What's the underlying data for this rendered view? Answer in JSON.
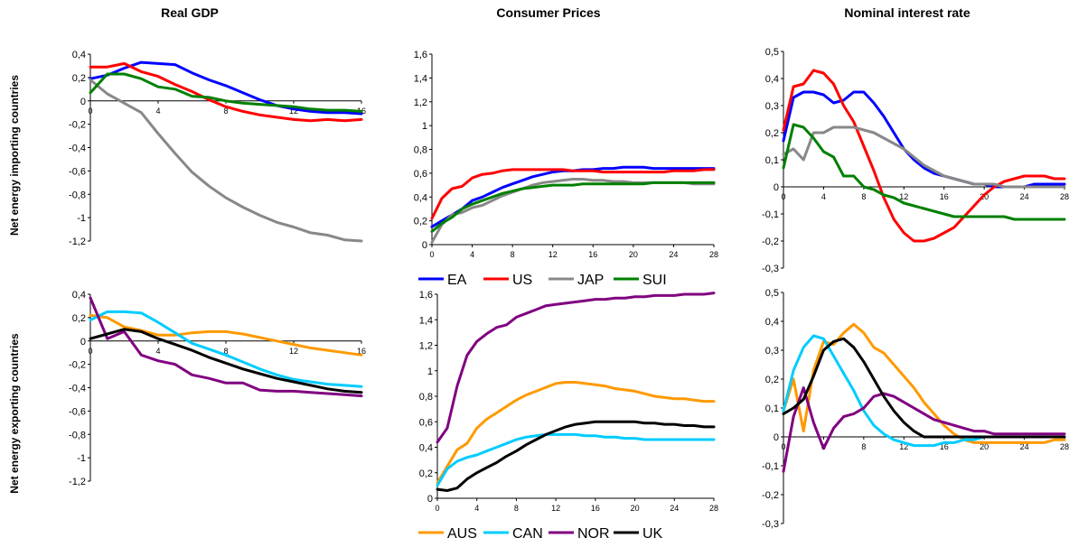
{
  "column_titles": [
    "Real GDP",
    "Consumer Prices",
    "Nominal interest rate"
  ],
  "row_labels": [
    "Net energy importing countries",
    "Net energy exporting countries"
  ],
  "legends": [
    [
      {
        "name": "EA",
        "color": "#0000ff"
      },
      {
        "name": "US",
        "color": "#ff0000"
      },
      {
        "name": "JAP",
        "color": "#888888"
      },
      {
        "name": "SUI",
        "color": "#008000"
      }
    ],
    [
      {
        "name": "AUS",
        "color": "#ff9900"
      },
      {
        "name": "CAN",
        "color": "#00ccff"
      },
      {
        "name": "NOR",
        "color": "#800080"
      },
      {
        "name": "UK",
        "color": "#000000"
      }
    ]
  ],
  "chart_data": [
    {
      "type": "line",
      "row": 0,
      "col": 0,
      "x": [
        0,
        1,
        2,
        3,
        4,
        5,
        6,
        7,
        8,
        9,
        10,
        11,
        12,
        13,
        14,
        15,
        16
      ],
      "xlim": [
        0,
        16
      ],
      "xticks": [
        0,
        4,
        8,
        12,
        16
      ],
      "ylim": [
        -1.2,
        0.4
      ],
      "yticks": [
        -1.2,
        -1,
        -0.8,
        -0.6,
        -0.4,
        -0.2,
        0,
        0.2,
        0.4
      ],
      "series": [
        {
          "name": "EA",
          "color": "#0000ff",
          "values": [
            0.19,
            0.22,
            0.28,
            0.33,
            0.32,
            0.31,
            0.24,
            0.18,
            0.13,
            0.07,
            0.01,
            -0.04,
            -0.07,
            -0.09,
            -0.1,
            -0.1,
            -0.11
          ]
        },
        {
          "name": "US",
          "color": "#ff0000",
          "values": [
            0.29,
            0.29,
            0.32,
            0.25,
            0.21,
            0.14,
            0.08,
            0.01,
            -0.05,
            -0.09,
            -0.12,
            -0.14,
            -0.16,
            -0.17,
            -0.16,
            -0.17,
            -0.16
          ]
        },
        {
          "name": "JAP",
          "color": "#888888",
          "values": [
            0.18,
            0.06,
            -0.02,
            -0.1,
            -0.28,
            -0.45,
            -0.61,
            -0.73,
            -0.83,
            -0.91,
            -0.98,
            -1.04,
            -1.08,
            -1.13,
            -1.15,
            -1.19,
            -1.2
          ]
        },
        {
          "name": "SUI",
          "color": "#008000",
          "values": [
            0.07,
            0.23,
            0.23,
            0.19,
            0.12,
            0.1,
            0.04,
            0.03,
            0.0,
            -0.02,
            -0.03,
            -0.04,
            -0.05,
            -0.07,
            -0.08,
            -0.08,
            -0.09
          ]
        }
      ]
    },
    {
      "type": "line",
      "row": 0,
      "col": 1,
      "x": [
        0,
        1,
        2,
        3,
        4,
        5,
        6,
        7,
        8,
        9,
        10,
        11,
        12,
        13,
        14,
        15,
        16,
        17,
        18,
        19,
        20,
        21,
        22,
        23,
        24,
        25,
        26,
        27,
        28
      ],
      "xlim": [
        0,
        28
      ],
      "xticks": [
        0,
        4,
        8,
        12,
        16,
        20,
        24,
        28
      ],
      "ylim": [
        0,
        1.6
      ],
      "yticks": [
        0,
        0.2,
        0.4,
        0.6,
        0.8,
        1,
        1.2,
        1.4,
        1.6
      ],
      "series": [
        {
          "name": "EA",
          "color": "#0000ff",
          "values": [
            0.15,
            0.2,
            0.25,
            0.3,
            0.37,
            0.4,
            0.44,
            0.48,
            0.51,
            0.54,
            0.57,
            0.59,
            0.61,
            0.62,
            0.62,
            0.63,
            0.63,
            0.64,
            0.64,
            0.65,
            0.65,
            0.65,
            0.64,
            0.64,
            0.64,
            0.64,
            0.64,
            0.64,
            0.64
          ]
        },
        {
          "name": "US",
          "color": "#ff0000",
          "values": [
            0.22,
            0.39,
            0.47,
            0.49,
            0.56,
            0.59,
            0.6,
            0.62,
            0.63,
            0.63,
            0.63,
            0.63,
            0.63,
            0.63,
            0.62,
            0.62,
            0.62,
            0.61,
            0.61,
            0.61,
            0.61,
            0.61,
            0.61,
            0.61,
            0.62,
            0.62,
            0.62,
            0.63,
            0.63
          ]
        },
        {
          "name": "JAP",
          "color": "#888888",
          "values": [
            0.02,
            0.17,
            0.25,
            0.27,
            0.31,
            0.33,
            0.37,
            0.41,
            0.44,
            0.47,
            0.5,
            0.52,
            0.53,
            0.54,
            0.55,
            0.55,
            0.54,
            0.54,
            0.53,
            0.53,
            0.52,
            0.52,
            0.52,
            0.52,
            0.52,
            0.52,
            0.51,
            0.51,
            0.51
          ]
        },
        {
          "name": "SUI",
          "color": "#008000",
          "values": [
            0.11,
            0.18,
            0.23,
            0.3,
            0.34,
            0.37,
            0.4,
            0.43,
            0.45,
            0.47,
            0.48,
            0.49,
            0.5,
            0.5,
            0.5,
            0.51,
            0.51,
            0.51,
            0.51,
            0.51,
            0.51,
            0.51,
            0.52,
            0.52,
            0.52,
            0.52,
            0.52,
            0.52,
            0.52
          ]
        }
      ]
    },
    {
      "type": "line",
      "row": 0,
      "col": 2,
      "x": [
        0,
        1,
        2,
        3,
        4,
        5,
        6,
        7,
        8,
        9,
        10,
        11,
        12,
        13,
        14,
        15,
        16,
        17,
        18,
        19,
        20,
        21,
        22,
        23,
        24,
        25,
        26,
        27,
        28
      ],
      "xlim": [
        0,
        28
      ],
      "xticks": [
        0,
        4,
        8,
        12,
        16,
        20,
        24,
        28
      ],
      "ylim": [
        -0.3,
        0.5
      ],
      "yticks": [
        -0.3,
        -0.2,
        -0.1,
        0,
        0.1,
        0.2,
        0.3,
        0.4,
        0.5
      ],
      "series": [
        {
          "name": "EA",
          "color": "#0000ff",
          "values": [
            0.17,
            0.33,
            0.35,
            0.35,
            0.34,
            0.31,
            0.32,
            0.35,
            0.35,
            0.31,
            0.26,
            0.2,
            0.14,
            0.1,
            0.07,
            0.05,
            0.04,
            0.03,
            0.02,
            0.01,
            0.01,
            0.0,
            0.0,
            0.0,
            0.0,
            0.01,
            0.01,
            0.01,
            0.01
          ]
        },
        {
          "name": "US",
          "color": "#ff0000",
          "values": [
            0.21,
            0.37,
            0.38,
            0.43,
            0.42,
            0.38,
            0.3,
            0.24,
            0.15,
            0.06,
            -0.04,
            -0.12,
            -0.17,
            -0.2,
            -0.2,
            -0.19,
            -0.17,
            -0.15,
            -0.11,
            -0.07,
            -0.03,
            0.0,
            0.02,
            0.03,
            0.04,
            0.04,
            0.04,
            0.03,
            0.03
          ]
        },
        {
          "name": "JAP",
          "color": "#888888",
          "values": [
            0.12,
            0.14,
            0.1,
            0.2,
            0.2,
            0.22,
            0.22,
            0.22,
            0.21,
            0.2,
            0.18,
            0.16,
            0.14,
            0.11,
            0.08,
            0.06,
            0.04,
            0.03,
            0.02,
            0.01,
            0.01,
            0.01,
            0.0,
            0.0,
            0.0,
            0.0,
            0.0,
            0.0,
            0.0
          ]
        },
        {
          "name": "SUI",
          "color": "#008000",
          "values": [
            0.07,
            0.23,
            0.22,
            0.18,
            0.13,
            0.11,
            0.04,
            0.04,
            0.0,
            -0.01,
            -0.03,
            -0.04,
            -0.06,
            -0.07,
            -0.08,
            -0.09,
            -0.1,
            -0.11,
            -0.11,
            -0.11,
            -0.11,
            -0.11,
            -0.11,
            -0.12,
            -0.12,
            -0.12,
            -0.12,
            -0.12,
            -0.12
          ]
        }
      ]
    },
    {
      "type": "line",
      "row": 1,
      "col": 0,
      "x": [
        0,
        1,
        2,
        3,
        4,
        5,
        6,
        7,
        8,
        9,
        10,
        11,
        12,
        13,
        14,
        15,
        16
      ],
      "xlim": [
        0,
        16
      ],
      "xticks": [
        0,
        4,
        8,
        12,
        16
      ],
      "ylim": [
        -1.2,
        0.4
      ],
      "yticks": [
        -1.2,
        -1,
        -0.8,
        -0.6,
        -0.4,
        -0.2,
        0,
        0.2,
        0.4
      ],
      "series": [
        {
          "name": "AUS",
          "color": "#ff9900",
          "values": [
            0.22,
            0.2,
            0.12,
            0.09,
            0.05,
            0.05,
            0.07,
            0.08,
            0.08,
            0.06,
            0.03,
            0.0,
            -0.03,
            -0.06,
            -0.08,
            -0.1,
            -0.12
          ]
        },
        {
          "name": "CAN",
          "color": "#00ccff",
          "values": [
            0.18,
            0.25,
            0.25,
            0.24,
            0.16,
            0.07,
            -0.02,
            -0.07,
            -0.12,
            -0.18,
            -0.24,
            -0.29,
            -0.33,
            -0.35,
            -0.37,
            -0.38,
            -0.39
          ]
        },
        {
          "name": "NOR",
          "color": "#800080",
          "values": [
            0.37,
            0.02,
            0.08,
            -0.12,
            -0.17,
            -0.2,
            -0.29,
            -0.32,
            -0.36,
            -0.36,
            -0.42,
            -0.43,
            -0.43,
            -0.44,
            -0.45,
            -0.46,
            -0.47
          ]
        },
        {
          "name": "UK",
          "color": "#000000",
          "values": [
            0.02,
            0.06,
            0.1,
            0.08,
            0.02,
            -0.03,
            -0.08,
            -0.14,
            -0.19,
            -0.24,
            -0.28,
            -0.32,
            -0.35,
            -0.38,
            -0.41,
            -0.43,
            -0.44
          ]
        }
      ]
    },
    {
      "type": "line",
      "row": 1,
      "col": 1,
      "x": [
        0,
        1,
        2,
        3,
        4,
        5,
        6,
        7,
        8,
        9,
        10,
        11,
        12,
        13,
        14,
        15,
        16,
        17,
        18,
        19,
        20,
        21,
        22,
        23,
        24,
        25,
        26,
        27,
        28
      ],
      "xlim": [
        0,
        28
      ],
      "xticks": [
        0,
        4,
        8,
        12,
        16,
        20,
        24,
        28
      ],
      "ylim": [
        0,
        1.6
      ],
      "yticks": [
        0,
        0.2,
        0.4,
        0.6,
        0.8,
        1,
        1.2,
        1.4,
        1.6
      ],
      "series": [
        {
          "name": "AUS",
          "color": "#ff9900",
          "values": [
            0.12,
            0.25,
            0.38,
            0.43,
            0.55,
            0.62,
            0.67,
            0.72,
            0.77,
            0.81,
            0.84,
            0.87,
            0.9,
            0.91,
            0.91,
            0.9,
            0.89,
            0.88,
            0.86,
            0.85,
            0.84,
            0.82,
            0.8,
            0.79,
            0.78,
            0.78,
            0.77,
            0.76,
            0.76
          ]
        },
        {
          "name": "CAN",
          "color": "#00ccff",
          "values": [
            0.1,
            0.23,
            0.29,
            0.32,
            0.34,
            0.37,
            0.4,
            0.43,
            0.46,
            0.48,
            0.49,
            0.5,
            0.5,
            0.5,
            0.5,
            0.49,
            0.49,
            0.48,
            0.48,
            0.47,
            0.47,
            0.46,
            0.46,
            0.46,
            0.46,
            0.46,
            0.46,
            0.46,
            0.46
          ]
        },
        {
          "name": "NOR",
          "color": "#800080",
          "values": [
            0.44,
            0.55,
            0.88,
            1.12,
            1.23,
            1.29,
            1.34,
            1.36,
            1.42,
            1.45,
            1.48,
            1.51,
            1.52,
            1.53,
            1.54,
            1.55,
            1.56,
            1.56,
            1.57,
            1.57,
            1.58,
            1.58,
            1.59,
            1.59,
            1.59,
            1.6,
            1.6,
            1.6,
            1.61
          ]
        },
        {
          "name": "UK",
          "color": "#000000",
          "values": [
            0.07,
            0.06,
            0.08,
            0.15,
            0.2,
            0.24,
            0.28,
            0.33,
            0.37,
            0.42,
            0.46,
            0.5,
            0.53,
            0.56,
            0.58,
            0.59,
            0.6,
            0.6,
            0.6,
            0.6,
            0.6,
            0.59,
            0.59,
            0.58,
            0.58,
            0.57,
            0.57,
            0.56,
            0.56
          ]
        }
      ]
    },
    {
      "type": "line",
      "row": 1,
      "col": 2,
      "x": [
        0,
        1,
        2,
        3,
        4,
        5,
        6,
        7,
        8,
        9,
        10,
        11,
        12,
        13,
        14,
        15,
        16,
        17,
        18,
        19,
        20,
        21,
        22,
        23,
        24,
        25,
        26,
        27,
        28
      ],
      "xlim": [
        0,
        28
      ],
      "xticks": [
        0,
        4,
        8,
        12,
        16,
        20,
        24,
        28
      ],
      "ylim": [
        -0.3,
        0.5
      ],
      "yticks": [
        -0.3,
        -0.2,
        -0.1,
        0,
        0.1,
        0.2,
        0.3,
        0.4,
        0.5
      ],
      "series": [
        {
          "name": "AUS",
          "color": "#ff9900",
          "values": [
            0.09,
            0.2,
            0.02,
            0.23,
            0.33,
            0.32,
            0.36,
            0.39,
            0.36,
            0.31,
            0.29,
            0.25,
            0.21,
            0.17,
            0.12,
            0.08,
            0.04,
            0.01,
            -0.01,
            -0.02,
            -0.02,
            -0.02,
            -0.02,
            -0.02,
            -0.02,
            -0.02,
            -0.02,
            -0.01,
            -0.01
          ]
        },
        {
          "name": "CAN",
          "color": "#00ccff",
          "values": [
            0.09,
            0.23,
            0.31,
            0.35,
            0.34,
            0.28,
            0.22,
            0.16,
            0.09,
            0.04,
            0.01,
            -0.01,
            -0.02,
            -0.03,
            -0.03,
            -0.03,
            -0.02,
            -0.02,
            -0.01,
            -0.01,
            0.0,
            0.0,
            0.0,
            0.0,
            0.0,
            0.0,
            0.0,
            0.0,
            0.0
          ]
        },
        {
          "name": "NOR",
          "color": "#800080",
          "values": [
            -0.12,
            0.07,
            0.17,
            0.05,
            -0.04,
            0.03,
            0.07,
            0.08,
            0.1,
            0.14,
            0.15,
            0.14,
            0.12,
            0.1,
            0.08,
            0.06,
            0.05,
            0.04,
            0.03,
            0.02,
            0.02,
            0.01,
            0.01,
            0.01,
            0.01,
            0.01,
            0.01,
            0.01,
            0.01
          ]
        },
        {
          "name": "UK",
          "color": "#000000",
          "values": [
            0.08,
            0.1,
            0.13,
            0.21,
            0.3,
            0.33,
            0.34,
            0.31,
            0.26,
            0.2,
            0.14,
            0.09,
            0.05,
            0.02,
            0.0,
            0.0,
            0.0,
            0.0,
            0.0,
            0.0,
            0.0,
            0.0,
            0.0,
            0.0,
            0.0,
            0.0,
            0.0,
            0.0,
            0.0
          ]
        }
      ]
    }
  ]
}
